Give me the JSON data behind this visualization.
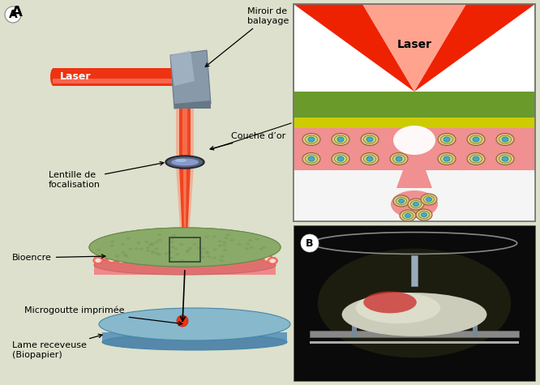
{
  "bg_color": "#dde0cc",
  "labels": {
    "laser": "Laser",
    "miroir": "Miroir de\nbalayage",
    "couche": "Couche d’or",
    "lentille": "Lentille de\nfocalisation",
    "bioencre": "Bioencre",
    "microgoutte": "Microgoutte imprimée",
    "lame": "Lame receveuse\n(Biopapier)",
    "laser_zoom": "Laser"
  },
  "colors": {
    "bg": "#dde0cc",
    "laser_red": "#ee3311",
    "laser_pink": "#ff8877",
    "mirror_light": "#aabbcc",
    "mirror_mid": "#8899aa",
    "mirror_dark": "#667788",
    "lens_outer": "#444455",
    "lens_mid": "#778899",
    "lens_light": "#99aacc",
    "beam_red": "#ee4422",
    "beam_pink": "#ff8866",
    "green_top": "#8aaa6a",
    "green_edge": "#6a8a4a",
    "bioink_pink": "#f08888",
    "bioink_edge": "#cc6666",
    "cell_outer": "#ee6644",
    "cell_inner": "#ffcccc",
    "receiver_top": "#88b8cc",
    "receiver_side": "#6699bb",
    "receiver_edge": "#4488aa",
    "drop_red": "#ee3311",
    "zoom_border": "#666666",
    "zoom_green": "#6a9a2a",
    "zoom_yellow": "#cccc00",
    "zoom_pink": "#f09090",
    "zoom_cell_tan": "#e8c088",
    "zoom_cell_green": "#c8d870",
    "zoom_cell_blue": "#44aacc",
    "zoom_cell_edge": "#886633",
    "photo_bg": "#111111"
  }
}
